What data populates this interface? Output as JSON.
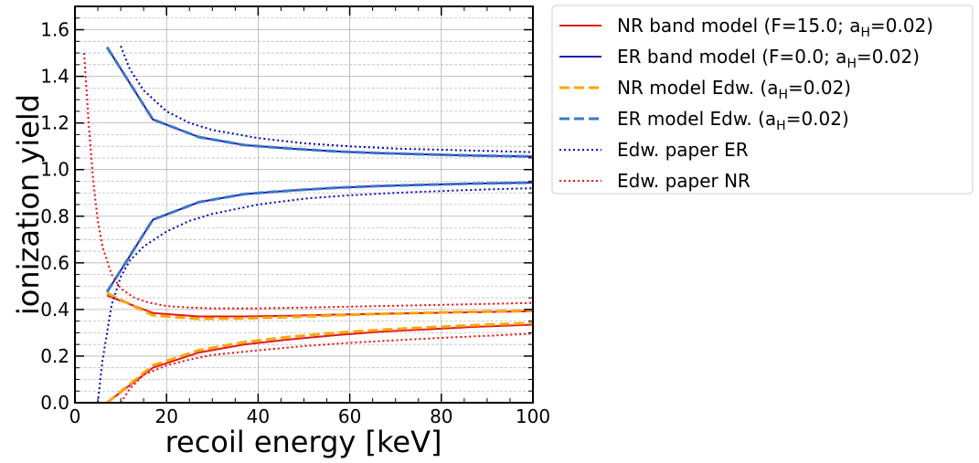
{
  "chart_data": {
    "type": "line",
    "xlabel": "recoil energy [keV]",
    "ylabel": "ionization yield",
    "xlim": [
      0,
      100
    ],
    "ylim": [
      0,
      1.7
    ],
    "x_ticks": [
      0,
      20,
      40,
      60,
      80,
      100
    ],
    "y_ticks": [
      0.0,
      0.2,
      0.4,
      0.6,
      0.8,
      1.0,
      1.2,
      1.4,
      1.6
    ],
    "x_tick_labels": [
      "0",
      "20",
      "40",
      "60",
      "80",
      "100"
    ],
    "y_tick_labels": [
      "0.0",
      "0.2",
      "0.4",
      "0.6",
      "0.8",
      "1.0",
      "1.2",
      "1.4",
      "1.6"
    ],
    "grid": "major and minor",
    "legend_position": "outside right, top",
    "series": [
      {
        "name": "NR band model (F=15.0; aH=0.02)",
        "legend_main": "NR band model (F=15.0; a",
        "legend_sub": "H",
        "legend_tail": "=0.02)",
        "color": "#e31a1c",
        "style": "solid",
        "width": 2,
        "upper": {
          "x": [
            7,
            17,
            27,
            37,
            47,
            57,
            67,
            77,
            87,
            100
          ],
          "y": [
            0.46,
            0.385,
            0.37,
            0.37,
            0.373,
            0.378,
            0.382,
            0.385,
            0.388,
            0.392
          ]
        },
        "lower": {
          "x": [
            7,
            17,
            27,
            37,
            47,
            57,
            67,
            77,
            87,
            100
          ],
          "y": [
            0.0,
            0.15,
            0.215,
            0.25,
            0.272,
            0.29,
            0.305,
            0.315,
            0.325,
            0.335
          ]
        }
      },
      {
        "name": "ER band model (F=0.0; aH=0.02)",
        "legend_main": "ER band model (F=0.0; a",
        "legend_sub": "H",
        "legend_tail": "=0.02)",
        "color": "#1f1fb4",
        "style": "solid",
        "width": 2,
        "upper": {
          "x": [
            7,
            17,
            27,
            37,
            47,
            57,
            67,
            77,
            87,
            100
          ],
          "y": [
            1.525,
            1.215,
            1.14,
            1.105,
            1.09,
            1.078,
            1.07,
            1.065,
            1.06,
            1.056
          ]
        },
        "lower": {
          "x": [
            7,
            17,
            27,
            37,
            47,
            57,
            67,
            77,
            87,
            100
          ],
          "y": [
            0.475,
            0.785,
            0.86,
            0.895,
            0.91,
            0.922,
            0.93,
            0.935,
            0.94,
            0.944
          ]
        }
      },
      {
        "name": "NR model Edw. (aH=0.02)",
        "legend_main": "NR model Edw. (a",
        "legend_sub": "H",
        "legend_tail": "=0.02)",
        "color": "#ffa500",
        "style": "dashed",
        "width": 3,
        "upper": {
          "x": [
            7,
            17,
            27,
            37,
            47,
            57,
            67,
            77,
            87,
            100
          ],
          "y": [
            0.47,
            0.375,
            0.36,
            0.362,
            0.368,
            0.375,
            0.381,
            0.386,
            0.39,
            0.395
          ]
        },
        "lower": {
          "x": [
            7,
            17,
            27,
            37,
            47,
            57,
            67,
            77,
            87,
            100
          ],
          "y": [
            0.0,
            0.16,
            0.225,
            0.26,
            0.283,
            0.3,
            0.313,
            0.323,
            0.332,
            0.342
          ]
        }
      },
      {
        "name": "ER model Edw. (aH=0.02)",
        "legend_main": "ER model Edw. (a",
        "legend_sub": "H",
        "legend_tail": "=0.02)",
        "color": "#3a78c8",
        "style": "dashed",
        "width": 3,
        "upper": {
          "x": [
            7,
            17,
            27,
            37,
            47,
            57,
            67,
            77,
            87,
            100
          ],
          "y": [
            1.525,
            1.215,
            1.14,
            1.105,
            1.09,
            1.078,
            1.07,
            1.065,
            1.06,
            1.056
          ]
        },
        "lower": {
          "x": [
            7,
            17,
            27,
            37,
            47,
            57,
            67,
            77,
            87,
            100
          ],
          "y": [
            0.475,
            0.785,
            0.86,
            0.895,
            0.91,
            0.922,
            0.93,
            0.935,
            0.94,
            0.944
          ]
        }
      },
      {
        "name": "Edw. paper ER",
        "legend_main": "Edw. paper ER",
        "color": "#0000cc",
        "style": "dotted",
        "width": 2,
        "upper": {
          "x": [
            10,
            12,
            15,
            20,
            25,
            30,
            40,
            50,
            60,
            70,
            80,
            90,
            100
          ],
          "y": [
            1.53,
            1.43,
            1.34,
            1.25,
            1.2,
            1.17,
            1.135,
            1.113,
            1.1,
            1.09,
            1.085,
            1.08,
            1.075
          ]
        },
        "lower": {
          "x": [
            5,
            6,
            7,
            8,
            10,
            12,
            15,
            20,
            25,
            30,
            40,
            50,
            60,
            70,
            80,
            90,
            100
          ],
          "y": [
            0.0,
            0.18,
            0.3,
            0.42,
            0.54,
            0.61,
            0.67,
            0.735,
            0.78,
            0.81,
            0.85,
            0.875,
            0.89,
            0.9,
            0.908,
            0.915,
            0.92
          ]
        }
      },
      {
        "name": "Edw. paper NR",
        "legend_main": "Edw. paper NR",
        "color": "#ff0000",
        "style": "dotted",
        "width": 2,
        "upper": {
          "x": [
            2,
            3,
            4,
            5,
            6,
            8,
            10,
            13,
            16,
            20,
            25,
            30,
            40,
            50,
            60,
            70,
            80,
            90,
            100
          ],
          "y": [
            1.5,
            1.2,
            0.95,
            0.78,
            0.67,
            0.55,
            0.49,
            0.45,
            0.43,
            0.415,
            0.408,
            0.405,
            0.405,
            0.408,
            0.412,
            0.416,
            0.42,
            0.424,
            0.428
          ]
        },
        "lower": {
          "x": [
            10,
            12,
            15,
            20,
            25,
            30,
            40,
            50,
            60,
            70,
            80,
            90,
            100
          ],
          "y": [
            0.0,
            0.06,
            0.12,
            0.16,
            0.185,
            0.205,
            0.225,
            0.243,
            0.257,
            0.268,
            0.278,
            0.287,
            0.296
          ]
        }
      }
    ]
  }
}
